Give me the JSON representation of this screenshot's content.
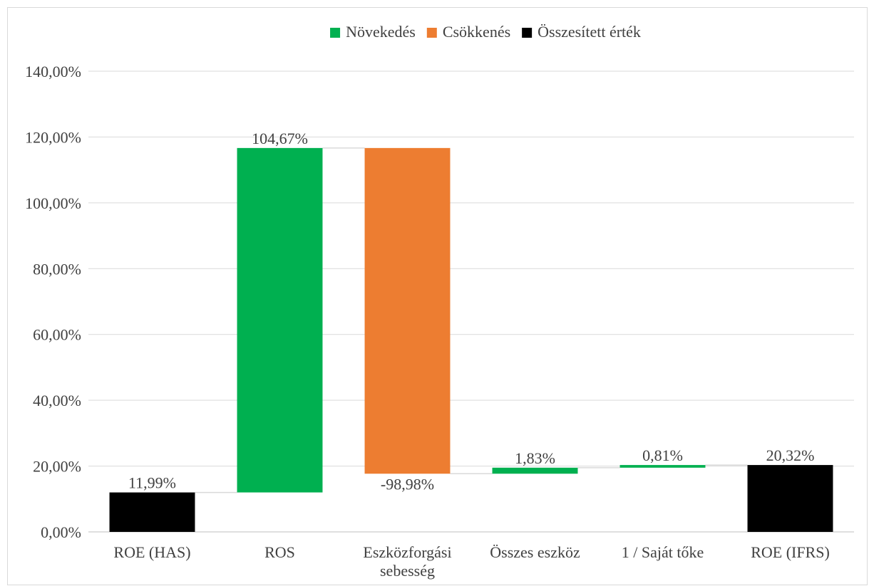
{
  "chart_data": {
    "type": "bar",
    "subtype": "waterfall",
    "legend": {
      "position": "top",
      "entries": [
        {
          "key": "increase",
          "label": "Növekedés",
          "color": "#00b050"
        },
        {
          "key": "decrease",
          "label": "Csökkenés",
          "color": "#ed7d31"
        },
        {
          "key": "total",
          "label": "Összesített érték",
          "color": "#000000"
        }
      ]
    },
    "ylim": [
      0,
      140
    ],
    "yticks": [
      0,
      20,
      40,
      60,
      80,
      100,
      120,
      140
    ],
    "ytick_labels": [
      "0,00%",
      "20,00%",
      "40,00%",
      "60,00%",
      "80,00%",
      "100,00%",
      "120,00%",
      "140,00%"
    ],
    "grid": true,
    "connector_lines": true,
    "categories": [
      [
        "ROE (HAS)"
      ],
      [
        "ROS"
      ],
      [
        "Eszközforgási",
        "sebesség"
      ],
      [
        "Összes eszköz"
      ],
      [
        "1 / Saját tőke"
      ],
      [
        "ROE (IFRS)"
      ]
    ],
    "steps": [
      {
        "kind": "total",
        "value": 11.99,
        "label": "11,99%"
      },
      {
        "kind": "increase",
        "value": 104.67,
        "label": "104,67%"
      },
      {
        "kind": "decrease",
        "value": -98.98,
        "label": "-98,98%"
      },
      {
        "kind": "increase",
        "value": 1.83,
        "label": "1,83%"
      },
      {
        "kind": "increase",
        "value": 0.81,
        "label": "0,81%"
      },
      {
        "kind": "total",
        "value": 20.32,
        "label": "20,32%"
      }
    ],
    "colors": {
      "grid": "#d9d9d9",
      "axis": "#bfbfbf",
      "connector": "#d9d9d9",
      "text": "#404040"
    }
  }
}
